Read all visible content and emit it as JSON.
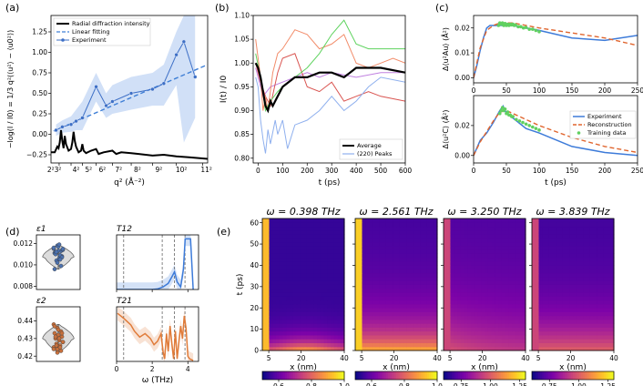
{
  "chart_data": [
    {
      "panel": "(a)",
      "type": "line",
      "ylabel": "−log(I / I0) = 1/3 q²(⟨u²⟩ − ⟨u0²⟩)",
      "xlabel": "q² (Å⁻²)",
      "xticks": [
        "2²3²",
        "4²",
        "5²",
        "6²",
        "7²",
        "8²",
        "9²",
        "10²",
        "11²"
      ],
      "xtick_values": [
        6.5,
        16,
        25,
        36,
        49,
        64,
        81,
        100,
        121
      ],
      "xlim": [
        0,
        125
      ],
      "ylim": [
        -0.35,
        1.45
      ],
      "yticks": [
        -0.25,
        0.0,
        0.25,
        0.5,
        0.75,
        1.0,
        1.25
      ],
      "ytick_labels": [
        "−0.25",
        "0.00",
        "0.25",
        "0.50",
        "0.75",
        "1.00",
        "1.25"
      ],
      "legend": [
        "Radial diffraction intensity",
        "Linear fitting",
        "Experiment"
      ],
      "experiment": {
        "x": [
          4,
          9,
          16,
          20,
          25,
          36,
          44,
          49,
          64,
          81,
          90,
          100,
          106,
          115
        ],
        "y": [
          0.05,
          0.09,
          0.12,
          0.16,
          0.2,
          0.58,
          0.35,
          0.4,
          0.5,
          0.55,
          0.62,
          0.97,
          1.13,
          0.7
        ]
      },
      "fit": {
        "x": [
          2,
          125
        ],
        "y": [
          0.04,
          0.85
        ]
      },
      "band_hi": [
        0.12,
        0.17,
        0.22,
        0.3,
        0.4,
        0.75,
        0.5,
        0.6,
        0.7,
        0.75,
        0.85,
        1.25,
        1.45,
        1.45
      ],
      "band_lo": [
        -0.02,
        0.02,
        0.03,
        0.05,
        0.05,
        0.4,
        0.2,
        0.25,
        0.3,
        0.35,
        0.35,
        0.6,
        -0.1,
        0.2
      ],
      "radial_profile": {
        "x": [
          0,
          3,
          5,
          6,
          7,
          8,
          9,
          10,
          11,
          12,
          14,
          16,
          17,
          18,
          19,
          20,
          22,
          24,
          25,
          26,
          28,
          32,
          36,
          38,
          42,
          49,
          52,
          56,
          64,
          70,
          81,
          90,
          100,
          110,
          125
        ],
        "y": [
          -0.22,
          -0.22,
          -0.15,
          -0.17,
          -0.1,
          0.05,
          -0.08,
          -0.17,
          -0.02,
          -0.12,
          -0.2,
          -0.18,
          -0.1,
          0.03,
          -0.08,
          -0.15,
          -0.22,
          -0.2,
          -0.12,
          -0.2,
          -0.23,
          -0.2,
          -0.18,
          -0.24,
          -0.22,
          -0.2,
          -0.24,
          -0.22,
          -0.23,
          -0.24,
          -0.26,
          -0.25,
          -0.27,
          -0.28,
          -0.3
        ]
      }
    },
    {
      "panel": "(b)",
      "type": "line",
      "xlabel": "t (ps)",
      "ylabel": "I(t) / I0",
      "xlim": [
        -20,
        600
      ],
      "ylim": [
        0.79,
        1.1
      ],
      "xticks": [
        0,
        100,
        200,
        300,
        400,
        500,
        600
      ],
      "yticks": [
        0.8,
        0.85,
        0.9,
        0.95,
        1.0,
        1.05,
        1.1
      ],
      "ytick_labels": [
        "0.80",
        "0.85",
        "0.90",
        "0.95",
        "1.00",
        "1.05",
        "1.10"
      ],
      "legend": [
        "Average",
        "(220) Peaks"
      ],
      "series": [
        {
          "name": "Average",
          "color": "#000000",
          "x": [
            -10,
            0,
            10,
            20,
            30,
            40,
            50,
            60,
            80,
            100,
            150,
            200,
            250,
            300,
            350,
            400,
            450,
            500,
            600
          ],
          "y": [
            1.0,
            0.99,
            0.97,
            0.94,
            0.91,
            0.9,
            0.92,
            0.91,
            0.93,
            0.95,
            0.97,
            0.97,
            0.98,
            0.98,
            0.97,
            0.99,
            0.99,
            0.99,
            0.98
          ]
        },
        {
          "name": "(220) Peaks",
          "color": "#8fb0ee",
          "x": [
            -10,
            0,
            10,
            20,
            30,
            40,
            50,
            70,
            80,
            100,
            120,
            150,
            200,
            250,
            300,
            350,
            400,
            450,
            500,
            600
          ],
          "y": [
            0.97,
            0.95,
            0.88,
            0.84,
            0.81,
            0.86,
            0.83,
            0.88,
            0.85,
            0.88,
            0.82,
            0.87,
            0.88,
            0.9,
            0.93,
            0.9,
            0.92,
            0.95,
            0.97,
            0.96
          ]
        },
        {
          "name": "peak-green",
          "color": "#5fd35f",
          "x": [
            -10,
            10,
            30,
            50,
            80,
            100,
            150,
            200,
            250,
            300,
            350,
            400,
            450,
            500,
            600
          ],
          "y": [
            1.02,
            0.97,
            0.9,
            0.92,
            0.94,
            0.95,
            0.97,
            0.99,
            1.02,
            1.06,
            1.09,
            1.04,
            1.03,
            1.03,
            1.03
          ]
        },
        {
          "name": "peak-orange",
          "color": "#f28c6a",
          "x": [
            -10,
            10,
            20,
            30,
            40,
            60,
            80,
            100,
            150,
            200,
            250,
            300,
            350,
            400,
            450,
            500,
            550,
            600
          ],
          "y": [
            1.05,
            0.97,
            0.9,
            0.93,
            0.9,
            0.98,
            1.02,
            1.03,
            1.07,
            1.06,
            1.03,
            1.04,
            1.06,
            1.0,
            0.99,
            1.0,
            1.01,
            1.0
          ]
        },
        {
          "name": "peak-red",
          "color": "#d9534f",
          "x": [
            -10,
            10,
            30,
            50,
            80,
            100,
            150,
            200,
            250,
            300,
            350,
            400,
            450,
            500,
            600
          ],
          "y": [
            1.0,
            0.96,
            0.93,
            0.91,
            0.98,
            1.01,
            1.02,
            0.95,
            0.94,
            0.96,
            0.92,
            0.93,
            0.94,
            0.93,
            0.92
          ]
        },
        {
          "name": "peak-violet",
          "color": "#c080e0",
          "x": [
            -10,
            20,
            50,
            100,
            150,
            200,
            250,
            300,
            400,
            500,
            600
          ],
          "y": [
            0.99,
            0.93,
            0.95,
            0.96,
            0.97,
            0.98,
            0.97,
            0.98,
            0.97,
            0.98,
            0.98
          ]
        }
      ]
    },
    {
      "panel": "(c)",
      "type": "line",
      "xlabel": "t (ps)",
      "xlim": [
        0,
        250
      ],
      "xticks": [
        0,
        50,
        100,
        150,
        200,
        250
      ],
      "legend": [
        "Experiment",
        "Reconstruction",
        "Training data"
      ],
      "top": {
        "ylabel": "Δ⟨u²Au⟩ (Å²)",
        "ylim": [
          -0.002,
          0.025
        ],
        "yticks": [
          0.0,
          0.01,
          0.02
        ],
        "ytick_labels": [
          "0.00",
          "0.01",
          "0.02"
        ],
        "experiment": {
          "x": [
            0,
            5,
            10,
            15,
            20,
            25,
            30,
            40,
            60,
            100,
            150,
            200,
            250
          ],
          "y": [
            0.0,
            0.005,
            0.011,
            0.016,
            0.02,
            0.021,
            0.021,
            0.021,
            0.021,
            0.019,
            0.016,
            0.015,
            0.017
          ]
        },
        "reconstruction": {
          "x": [
            0,
            10,
            20,
            30,
            40,
            60,
            100,
            150,
            200,
            250
          ],
          "y": [
            0.0,
            0.012,
            0.019,
            0.021,
            0.022,
            0.022,
            0.02,
            0.018,
            0.016,
            0.013
          ]
        },
        "training": {
          "x": [
            38,
            40,
            42,
            44,
            46,
            48,
            50,
            52,
            54,
            56,
            58,
            60,
            62,
            64,
            68,
            72,
            76,
            80,
            85,
            90,
            95,
            100
          ],
          "y": [
            0.021,
            0.022,
            0.0215,
            0.022,
            0.021,
            0.0218,
            0.021,
            0.0215,
            0.021,
            0.0215,
            0.0212,
            0.0215,
            0.021,
            0.0212,
            0.0205,
            0.0205,
            0.02,
            0.0202,
            0.0195,
            0.0195,
            0.019,
            0.0185
          ]
        }
      },
      "bottom": {
        "ylabel": "Δ⟨u²C⟩ (Å²)",
        "ylim": [
          -0.005,
          0.04
        ],
        "yticks": [
          0.0,
          0.02
        ],
        "ytick_labels": [
          "0.00",
          "0.02"
        ],
        "experiment": {
          "x": [
            0,
            10,
            20,
            30,
            40,
            45,
            50,
            60,
            80,
            100,
            150,
            200,
            250
          ],
          "y": [
            0.0,
            0.01,
            0.015,
            0.022,
            0.03,
            0.033,
            0.028,
            0.025,
            0.018,
            0.015,
            0.006,
            0.002,
            0.0
          ]
        },
        "reconstruction": {
          "x": [
            0,
            10,
            20,
            30,
            40,
            50,
            60,
            100,
            150,
            200,
            250
          ],
          "y": [
            0.0,
            0.009,
            0.016,
            0.023,
            0.029,
            0.03,
            0.028,
            0.02,
            0.012,
            0.006,
            0.002
          ]
        },
        "training": {
          "x": [
            40,
            42,
            44,
            46,
            48,
            50,
            52,
            54,
            56,
            58,
            60,
            65,
            70,
            75,
            80,
            85,
            90,
            95,
            100
          ],
          "y": [
            0.028,
            0.03,
            0.032,
            0.03,
            0.031,
            0.028,
            0.029,
            0.027,
            0.027,
            0.026,
            0.026,
            0.024,
            0.023,
            0.022,
            0.021,
            0.02,
            0.019,
            0.018,
            0.017
          ]
        }
      }
    },
    {
      "panel": "(d)",
      "type": "violin",
      "violins": [
        {
          "label": "ε1",
          "ylim": [
            0.0077,
            0.0128
          ],
          "yticks": [
            0.008,
            0.01,
            0.012
          ],
          "ytick_labels": [
            "0.008",
            "0.010",
            "0.012"
          ],
          "color": "#4c72b0",
          "points": [
            0.0115,
            0.0118,
            0.0113,
            0.0111,
            0.0117,
            0.0108,
            0.0112,
            0.0106,
            0.0114,
            0.0104,
            0.0109,
            0.0116,
            0.0102,
            0.0099,
            0.0096,
            0.0113,
            0.0107,
            0.011,
            0.0119,
            0.0115,
            0.0112,
            0.0105
          ]
        },
        {
          "label": "ε2",
          "ylim": [
            0.417,
            0.448
          ],
          "yticks": [
            0.42,
            0.43,
            0.44
          ],
          "ytick_labels": [
            "0.42",
            "0.43",
            "0.44"
          ],
          "color": "#c8703c",
          "points": [
            0.438,
            0.436,
            0.434,
            0.433,
            0.432,
            0.431,
            0.43,
            0.429,
            0.428,
            0.427,
            0.426,
            0.425,
            0.424,
            0.423,
            0.437,
            0.435,
            0.433,
            0.431,
            0.43,
            0.428,
            0.426,
            0.425,
            0.424,
            0.422
          ]
        }
      ]
    },
    {
      "panel": "(d)",
      "type": "line",
      "xlabel": "ω (THz)",
      "xlim": [
        0,
        4.6
      ],
      "xticks": [
        0,
        2,
        4
      ],
      "vlines": [
        0.398,
        2.561,
        3.25,
        3.839
      ],
      "T12": {
        "label": "T12",
        "ylim": [
          0,
          1.08
        ],
        "color": "#3d7bd9",
        "x": [
          0,
          0.5,
          1.0,
          1.5,
          2.0,
          2.3,
          2.6,
          2.9,
          3.1,
          3.25,
          3.4,
          3.6,
          3.75,
          3.85,
          4.0,
          4.15,
          4.3
        ],
        "y": [
          0.0,
          0.0,
          0.0,
          0.0,
          0.0,
          0.01,
          0.05,
          0.12,
          0.25,
          0.35,
          0.15,
          0.05,
          0.4,
          1.0,
          1.0,
          1.0,
          0.0
        ]
      },
      "T21": {
        "label": "T21",
        "ylim": [
          0,
          1.08
        ],
        "color": "#e07b39",
        "x": [
          0.05,
          0.3,
          0.5,
          0.8,
          1.0,
          1.3,
          1.6,
          1.9,
          2.1,
          2.3,
          2.5,
          2.6,
          2.7,
          2.8,
          2.9,
          3.0,
          3.1,
          3.2,
          3.3,
          3.4,
          3.5,
          3.6,
          3.7,
          3.8,
          3.9,
          4.0,
          4.1,
          4.3
        ],
        "y": [
          0.95,
          0.88,
          0.82,
          0.72,
          0.6,
          0.48,
          0.55,
          0.45,
          0.33,
          0.4,
          0.55,
          0.2,
          0.05,
          0.55,
          0.2,
          0.7,
          0.35,
          0.05,
          0.6,
          0.05,
          0.4,
          0.7,
          0.45,
          0.9,
          0.65,
          0.1,
          0.05,
          0.02
        ]
      }
    },
    {
      "panel": "(e)",
      "type": "heatmap",
      "ylabel": "t (ps)",
      "xlabel": "x (nm)",
      "ylim": [
        0,
        62
      ],
      "yticks": [
        0,
        10,
        20,
        30,
        40,
        50,
        60
      ],
      "xlim": [
        2,
        40
      ],
      "xticks": [
        5,
        20,
        40
      ],
      "colormap": "plasma",
      "maps": [
        {
          "title": "ω = 0.398 THz",
          "clim": [
            0.5,
            1.0
          ],
          "cticks": [
            0.6,
            0.8,
            1.0
          ],
          "ctick_labels": [
            "0.6",
            "0.8",
            "1.0"
          ]
        },
        {
          "title": "ω = 2.561 THz",
          "clim": [
            0.5,
            1.0
          ],
          "cticks": [
            0.6,
            0.8,
            1.0
          ],
          "ctick_labels": [
            "0.6",
            "0.8",
            "1.0"
          ]
        },
        {
          "title": "ω = 3.250 THz",
          "clim": [
            0.6,
            1.3
          ],
          "cticks": [
            0.75,
            1.0,
            1.25
          ],
          "ctick_labels": [
            "0.75",
            "1.00",
            "1.25"
          ]
        },
        {
          "title": "ω = 3.839 THz",
          "clim": [
            0.6,
            1.3
          ],
          "cticks": [
            0.75,
            1.0,
            1.25
          ],
          "ctick_labels": [
            "0.75",
            "1.00",
            "1.25"
          ]
        }
      ]
    }
  ]
}
